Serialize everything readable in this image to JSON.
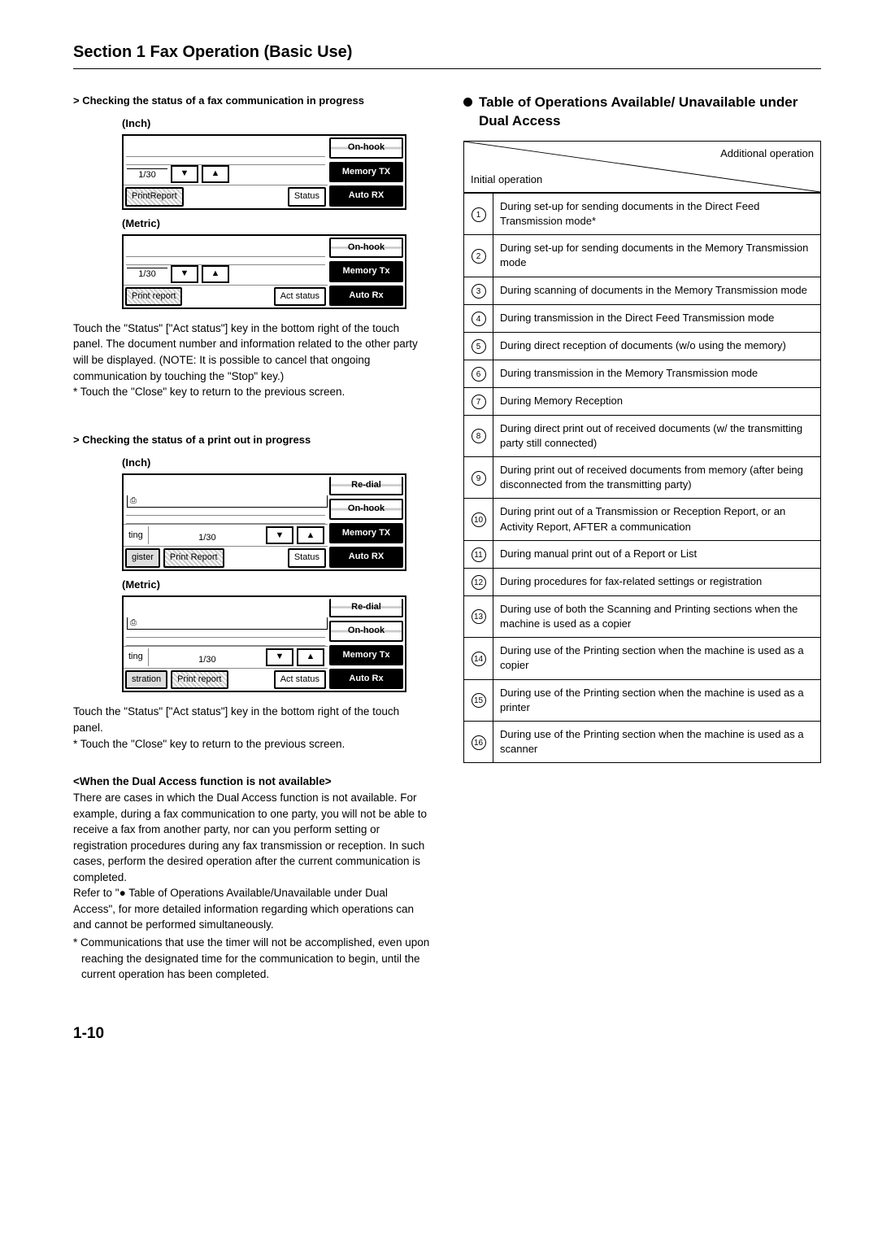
{
  "section_title": "Section 1  Fax Operation (Basic Use)",
  "left": {
    "check_fax": "> Checking the status of a fax communication in progress",
    "inch": "(Inch)",
    "metric": "(Metric)",
    "check_print": "> Checking the status of a print out in progress",
    "page_ind": "1/30",
    "btn_onhook": "On-hook",
    "btn_memtx": "Memory TX",
    "btn_memtx_m": "Memory Tx",
    "btn_autorx": "Auto RX",
    "btn_autorx_m": "Auto Rx",
    "btn_redial": "Re-dial",
    "tab_printreport": "PrintReport",
    "tab_printreport_sp": "Print Report",
    "tab_printreport_m": "Print report",
    "tab_status": "Status",
    "tab_actstatus": "Act status",
    "tab_gister": "gister",
    "tab_stration": "stration",
    "tab_ting": "ting",
    "para1": "Touch the \"Status\" [\"Act status\"] key in the bottom right of the touch panel. The document number and information related to the other party will be displayed. (NOTE: It is possible to cancel that ongoing communication by touching the \"Stop\" key.)",
    "para1_star": "* Touch the \"Close\" key to return to the previous screen.",
    "para2": "Touch the \"Status\" [\"Act status\"] key in the bottom right of the touch panel.",
    "para2_star": "* Touch the \"Close\" key to return to the previous screen.",
    "dual_hdr": "<When the Dual Access function is not available>",
    "dual_p": "There are cases in which the Dual Access function is not available. For example, during a fax communication to one party, you will not be able to receive a fax from another party, nor can you perform setting or registration procedures during any fax transmission or reception. In such cases, perform the desired operation after the current communication is completed.",
    "dual_p2": "Refer to \"● Table of Operations Available/Unavailable under Dual Access\", for more detailed information regarding which operations can and cannot be performed simultaneously.",
    "dual_star": "* Communications that use the timer will not be accomplished, even upon reaching the designated time for the communication to begin, until the current operation has been completed."
  },
  "right": {
    "title": "Table of Operations Available/ Unavailable under Dual Access",
    "additional": "Additional operation",
    "initial": "Initial operation",
    "rows": [
      "During set-up for sending documents in the Direct Feed Transmission mode*",
      "During set-up for sending documents in the Memory Transmission mode",
      "During scanning of documents in the Memory Transmission mode",
      "During transmission in the Direct Feed Transmission mode",
      "During direct reception of documents (w/o using the memory)",
      "During transmission in the Memory Transmission mode",
      "During Memory Reception",
      "During direct print out of received documents (w/ the transmitting party still connected)",
      "During print out of received documents from memory (after being disconnected from the transmitting party)",
      "During print out of a Transmission or Reception Report, or an Activity Report, AFTER a communication",
      "During manual print out of a Report or List",
      "During procedures for fax-related settings or registration",
      "During use of both the Scanning and Printing sections when the machine is used as a copier",
      "During use of the Printing section when the machine is used as a copier",
      "During use of the Printing section when the machine is used as a printer",
      "During use of the Printing section when the machine is used as a scanner"
    ]
  },
  "page_num": "1-10"
}
